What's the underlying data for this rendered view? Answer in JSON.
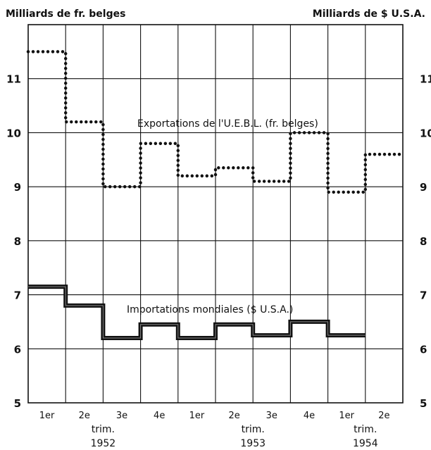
{
  "chart_data": {
    "type": "line",
    "axis_left_label": "Milliards de fr. belges",
    "axis_right_label": "Milliards de $ U.S.A.",
    "ylim": [
      5,
      12
    ],
    "yticks": [
      5,
      6,
      7,
      8,
      9,
      10,
      11
    ],
    "ytick_labels": [
      "5",
      "6",
      "7",
      "8",
      "9",
      "10",
      "11"
    ],
    "quarter_labels": [
      "1er",
      "2e",
      "3e",
      "4e",
      "1er",
      "2e",
      "3e",
      "4e",
      "1er",
      "2e"
    ],
    "year_groups": [
      {
        "trim_label": "trim.",
        "year": "1952"
      },
      {
        "trim_label": "trim.",
        "year": "1953"
      },
      {
        "trim_label": "trim.",
        "year": "1954"
      }
    ],
    "grid": true,
    "series": [
      {
        "name": "Exportations de l'U.E.B.L. (fr. belges)",
        "style": "dotted-step",
        "color": "#111111",
        "values": [
          11.5,
          10.2,
          9.0,
          9.8,
          9.2,
          9.35,
          9.1,
          10.0,
          8.9,
          9.6
        ]
      },
      {
        "name": "Importations mondiales ($ U.S.A.)",
        "style": "thick-step",
        "color": "#111111",
        "values": [
          7.15,
          6.8,
          6.2,
          6.45,
          6.2,
          6.45,
          6.25,
          6.5,
          6.25
        ]
      }
    ]
  }
}
